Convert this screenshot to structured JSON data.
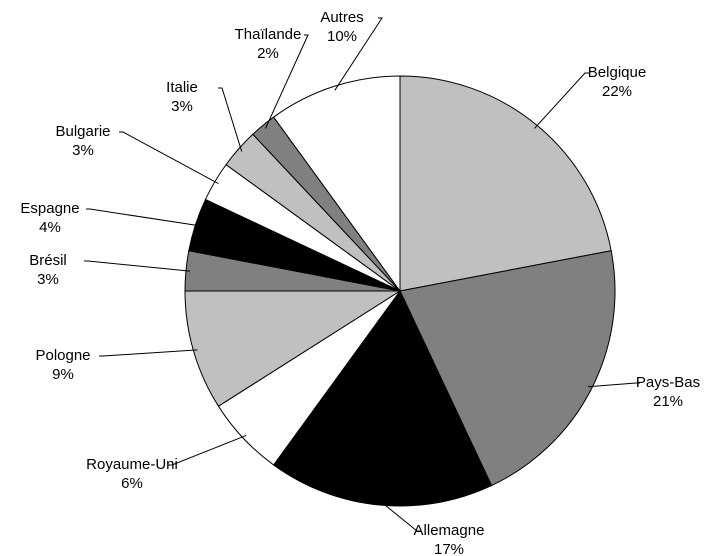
{
  "chart_data": {
    "type": "pie",
    "categories": [
      "Belgique",
      "Pays-Bas",
      "Allemagne",
      "Royaume-Uni",
      "Pologne",
      "Brésil",
      "Espagne",
      "Bulgarie",
      "Italie",
      "Thaïlande",
      "Autres"
    ],
    "values": [
      22,
      21,
      17,
      6,
      9,
      3,
      4,
      3,
      3,
      2,
      10
    ],
    "value_labels": [
      "22%",
      "21%",
      "17%",
      "6%",
      "9%",
      "3%",
      "4%",
      "3%",
      "3%",
      "2%",
      "10%"
    ],
    "colors": [
      "#c0c0c0",
      "#808080",
      "#000000",
      "#ffffff",
      "#c0c0c0",
      "#808080",
      "#000000",
      "#ffffff",
      "#c0c0c0",
      "#808080",
      "#ffffff"
    ]
  }
}
